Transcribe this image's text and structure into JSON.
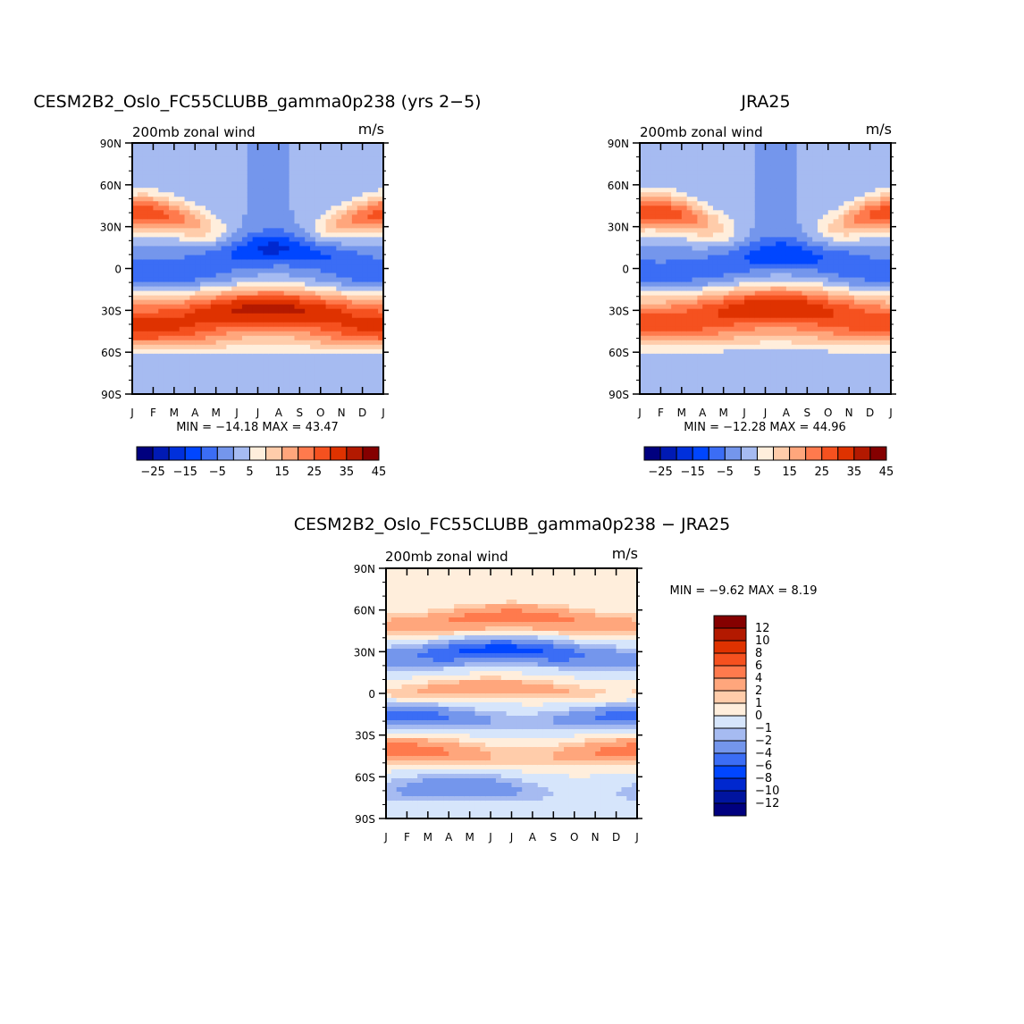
{
  "chart_data": [
    {
      "type": "heatmap",
      "title": "CESM2B2_Oslo_FC55CLUBB_gamma0p238 (yrs 2−5)",
      "left_label": "200mb zonal wind",
      "units_label": "m/s",
      "x_ticks": [
        "J",
        "F",
        "M",
        "A",
        "M",
        "J",
        "J",
        "A",
        "S",
        "O",
        "N",
        "D",
        "J"
      ],
      "y_ticks": [
        "90N",
        "60N",
        "30N",
        "0",
        "30S",
        "60S",
        "90S"
      ],
      "y_tick_values": [
        90,
        60,
        30,
        0,
        -30,
        -60,
        -90
      ],
      "stats_text": "MIN =  −14.18  MAX =   43.47",
      "min": -14.18,
      "max": 43.47,
      "colorbar_levels": [
        -30,
        -25,
        -20,
        -15,
        -10,
        -5,
        0,
        5,
        10,
        15,
        20,
        25,
        30,
        35,
        40,
        45
      ],
      "colorbar_labels": [
        "−25",
        "−15",
        "−5",
        "5",
        "15",
        "25",
        "35",
        "45"
      ],
      "field": {
        "months_range": [
          0,
          12
        ],
        "components": [
          {
            "lat": 30,
            "lat_amp": 10,
            "jet_amp": 13,
            "cycle_amp": 15,
            "cycle_phase": 0.5,
            "sharpness": 170
          },
          {
            "lat": -32,
            "lat_amp": 3,
            "jet_amp": 31,
            "cycle_amp": 6,
            "cycle_phase": 6.5,
            "sharpness": 260
          },
          {
            "lat": -50,
            "lat_amp": 2,
            "jet_amp": 11,
            "cycle_amp": 4,
            "cycle_phase": 0.5,
            "sharpness": 130
          },
          {
            "lat": 8,
            "lat_amp": 6,
            "jet_amp": -9,
            "cycle_amp": 6,
            "cycle_phase": 7.0,
            "sharpness": 140
          },
          {
            "lat": -8,
            "lat_amp": 3,
            "jet_amp": -5,
            "cycle_amp": 2,
            "cycle_phase": 1.0,
            "sharpness": 110
          }
        ]
      }
    },
    {
      "type": "heatmap",
      "title": "JRA25",
      "left_label": "200mb zonal wind",
      "units_label": "m/s",
      "x_ticks": [
        "J",
        "F",
        "M",
        "A",
        "M",
        "J",
        "J",
        "A",
        "S",
        "O",
        "N",
        "D",
        "J"
      ],
      "y_ticks": [
        "90N",
        "60N",
        "30N",
        "0",
        "30S",
        "60S",
        "90S"
      ],
      "y_tick_values": [
        90,
        60,
        30,
        0,
        -30,
        -60,
        -90
      ],
      "stats_text": "MIN =  −12.28  MAX =   44.96",
      "min": -12.28,
      "max": 44.96,
      "colorbar_levels": [
        -30,
        -25,
        -20,
        -15,
        -10,
        -5,
        0,
        5,
        10,
        15,
        20,
        25,
        30,
        35,
        40,
        45
      ],
      "colorbar_labels": [
        "−25",
        "−15",
        "−5",
        "5",
        "15",
        "25",
        "35",
        "45"
      ],
      "field": {
        "months_range": [
          0,
          12
        ],
        "components": [
          {
            "lat": 31,
            "lat_amp": 10,
            "jet_amp": 14,
            "cycle_amp": 16,
            "cycle_phase": 0.5,
            "sharpness": 170
          },
          {
            "lat": -31,
            "lat_amp": 3,
            "jet_amp": 28,
            "cycle_amp": 7,
            "cycle_phase": 6.5,
            "sharpness": 260
          },
          {
            "lat": -48,
            "lat_amp": 2,
            "jet_amp": 10,
            "cycle_amp": 3,
            "cycle_phase": 0.5,
            "sharpness": 140
          },
          {
            "lat": 5,
            "lat_amp": 5,
            "jet_amp": -8,
            "cycle_amp": 5,
            "cycle_phase": 7.0,
            "sharpness": 140
          },
          {
            "lat": -8,
            "lat_amp": 3,
            "jet_amp": -4,
            "cycle_amp": 2,
            "cycle_phase": 1.0,
            "sharpness": 110
          }
        ]
      }
    },
    {
      "type": "heatmap",
      "title": "CESM2B2_Oslo_FC55CLUBB_gamma0p238 − JRA25",
      "left_label": "200mb zonal wind",
      "units_label": "m/s",
      "x_ticks": [
        "J",
        "F",
        "M",
        "A",
        "M",
        "J",
        "J",
        "A",
        "S",
        "O",
        "N",
        "D",
        "J"
      ],
      "y_ticks": [
        "90N",
        "60N",
        "30N",
        "0",
        "30S",
        "60S",
        "90S"
      ],
      "y_tick_values": [
        90,
        60,
        30,
        0,
        -30,
        -60,
        -90
      ],
      "stats_text": "MIN =   −9.62  MAX =    8.19",
      "min": -9.62,
      "max": 8.19,
      "colorbar_levels": [
        -14,
        -12,
        -10,
        -8,
        -6,
        -4,
        -2,
        -1,
        0,
        1,
        2,
        4,
        6,
        8,
        10,
        12,
        14
      ],
      "colorbar_labels": [
        "12",
        "10",
        "8",
        "6",
        "4",
        "2",
        "1",
        "0",
        "−1",
        "−2",
        "−4",
        "−6",
        "−8",
        "−10",
        "−12"
      ],
      "field": {
        "months_range": [
          0,
          12
        ],
        "components": [
          {
            "lat": 52,
            "lat_amp": 3,
            "jet_amp": 4,
            "cycle_amp": 1.5,
            "cycle_phase": 6.0,
            "sharpness": 70
          },
          {
            "lat": 28,
            "lat_amp": 3,
            "jet_amp": -5,
            "cycle_amp": 2,
            "cycle_phase": 5.5,
            "sharpness": 70
          },
          {
            "lat": 2,
            "lat_amp": 2,
            "jet_amp": 2.5,
            "cycle_amp": 1.5,
            "cycle_phase": 5.0,
            "sharpness": 40
          },
          {
            "lat": -18,
            "lat_amp": 2,
            "jet_amp": -3.5,
            "cycle_amp": 2,
            "cycle_phase": 0.5,
            "sharpness": 60
          },
          {
            "lat": -43,
            "lat_amp": 2,
            "jet_amp": 3.5,
            "cycle_amp": 2,
            "cycle_phase": 0.5,
            "sharpness": 70
          },
          {
            "lat": -70,
            "lat_amp": 3,
            "jet_amp": -2,
            "cycle_amp": 1.5,
            "cycle_phase": 3.5,
            "sharpness": 90
          }
        ]
      }
    }
  ],
  "colors": {
    "palette_16": [
      "#00007f",
      "#00149f",
      "#0028cf",
      "#0046ff",
      "#3b6df5",
      "#7496ec",
      "#a6bbf1",
      "#d6e5fb",
      "#ffeedc",
      "#ffccaa",
      "#ffa67c",
      "#ff7a4d",
      "#f5511f",
      "#df3200",
      "#b31900",
      "#850000"
    ],
    "palette_16_cb": [
      "#00007f",
      "#001ab4",
      "#0030dc",
      "#0046ff",
      "#3b6df5",
      "#7496ec",
      "#a6bbf1",
      "#d6e5fb",
      "#ffeedc",
      "#ffccaa",
      "#ffa67c",
      "#ff7a4d",
      "#f5511f",
      "#df3200",
      "#b31900",
      "#850000"
    ]
  }
}
